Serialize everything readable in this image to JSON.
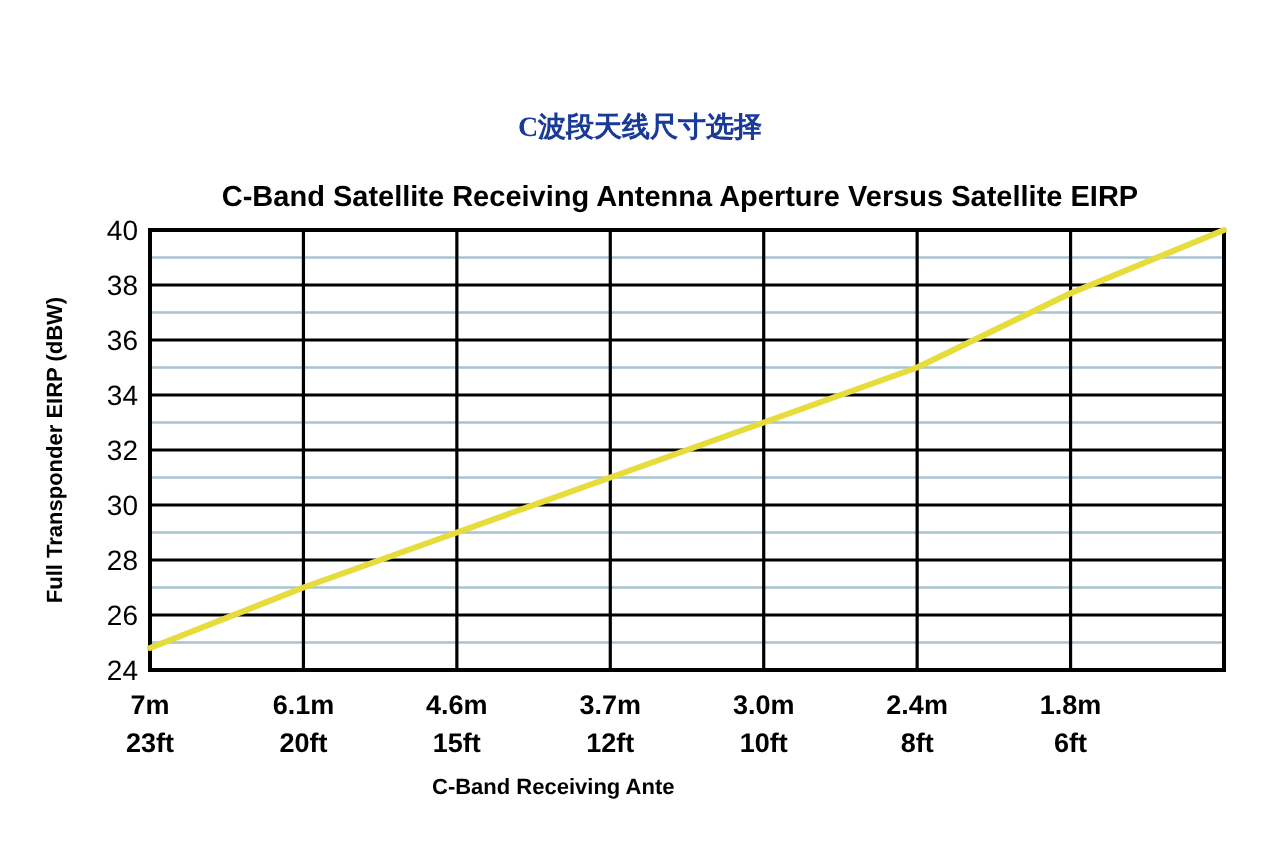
{
  "chart_data": {
    "type": "line",
    "title": "C波段天线尺寸选择",
    "subtitle": "C-Band Satellite Receiving Antenna Aperture Versus Satellite EIRP",
    "xlabel": "C-Band Receiving Ante",
    "ylabel": "Full Transponder EIRP (dBW)",
    "categories": [
      "7m\n23ft",
      "6.1m\n20ft",
      "4.6m\n15ft",
      "3.7m\n12ft",
      "3.0m\n10ft",
      "2.4m\n8ft",
      "1.8m\n6ft",
      null
    ],
    "series": [
      {
        "color": "#e6dc3c",
        "values": [
          24.8,
          27,
          29,
          31,
          33,
          35,
          37.7,
          40
        ]
      }
    ],
    "ylim": [
      24,
      40
    ],
    "yticks": [
      24,
      {
        "value": 25,
        "label": null
      },
      26,
      {
        "value": 27,
        "label": null
      },
      28,
      {
        "value": 29,
        "label": null
      },
      30,
      {
        "value": 31,
        "label": null
      },
      32,
      {
        "value": 33,
        "label": null
      },
      34,
      {
        "value": 35,
        "label": null
      },
      36,
      {
        "value": 37,
        "label": null
      },
      38,
      {
        "value": 39,
        "label": null
      },
      40
    ],
    "grid": true,
    "marker": "none",
    "line_style": "solid"
  }
}
